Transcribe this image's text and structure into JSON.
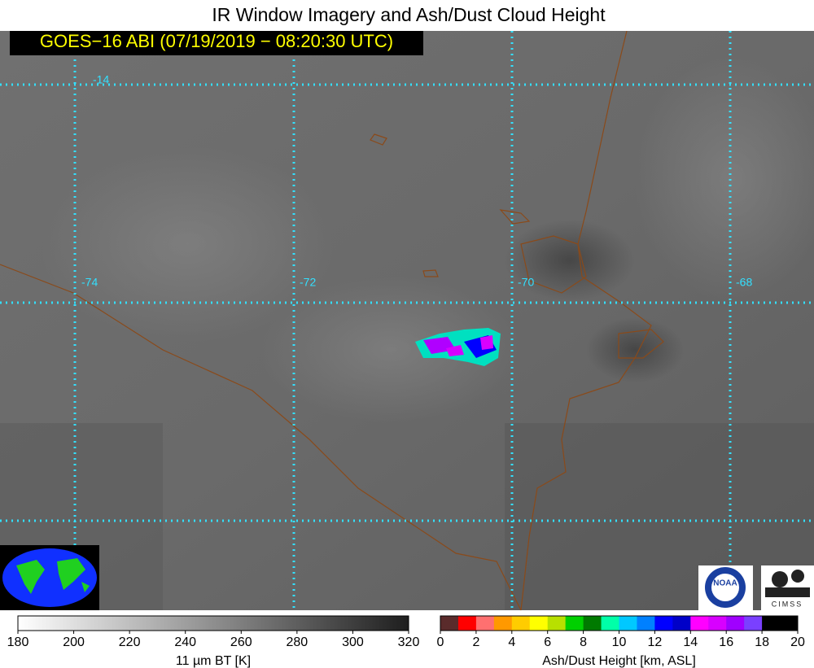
{
  "header": {
    "title": "IR Window Imagery and Ash/Dust Cloud Height",
    "subtitle": "GOES−16 ABI (07/19/2019 − 08:20:30 UTC)"
  },
  "map": {
    "latitude_labels": [
      "-14"
    ],
    "longitude_labels": [
      "-74",
      "-72",
      "-70",
      "-68"
    ]
  },
  "logos": {
    "noaa": "NOAA",
    "cimss": "CIMSS"
  },
  "colorbars": [
    {
      "label": "11 µm BT [K]",
      "ticks": [
        180,
        200,
        220,
        240,
        260,
        280,
        300,
        320
      ],
      "colors": [
        "#ffffff",
        "#1e1e1e"
      ]
    },
    {
      "label": "Ash/Dust Height [km, ASL]",
      "ticks": [
        0,
        2,
        4,
        6,
        8,
        10,
        12,
        14,
        16,
        18,
        20
      ],
      "colors": [
        "#5a2b2b",
        "#ff0000",
        "#ff7070",
        "#ff9900",
        "#ffcc00",
        "#ffff00",
        "#b8e000",
        "#00d000",
        "#007a00",
        "#00ffa8",
        "#00c8ff",
        "#0080ff",
        "#0000ff",
        "#0000c8",
        "#ff00ff",
        "#d800ff",
        "#a000ff",
        "#7a40ff",
        "#000000",
        "#000000"
      ]
    }
  ]
}
